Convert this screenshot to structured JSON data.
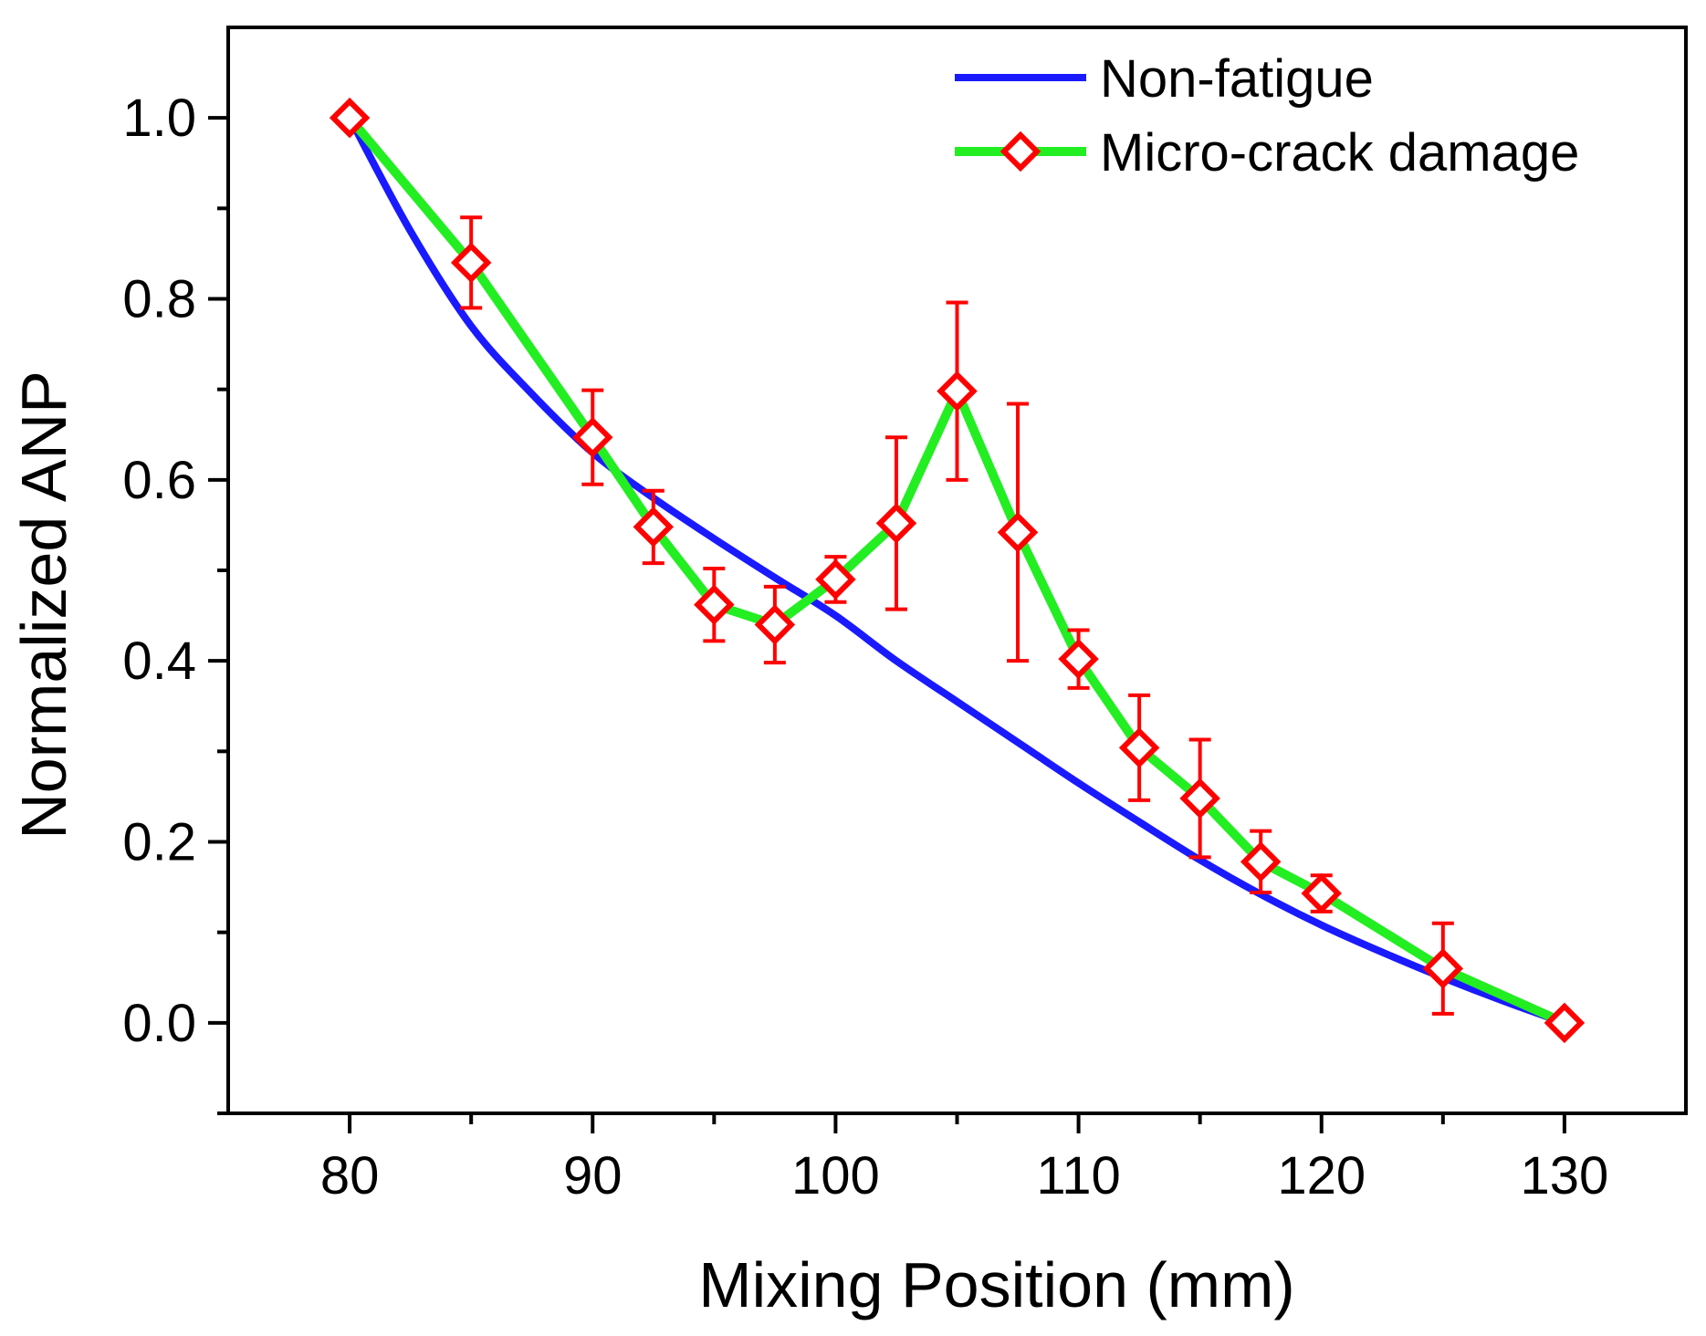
{
  "chart_data": {
    "type": "line",
    "title": "",
    "xlabel": "Mixing Position (mm)",
    "ylabel": "Normalized ANP",
    "xlim": [
      75,
      135
    ],
    "ylim": [
      -0.1,
      1.1
    ],
    "xticks": [
      80,
      90,
      100,
      110,
      120,
      130
    ],
    "xtick_labels": [
      "80",
      "90",
      "100",
      "110",
      "120",
      "130"
    ],
    "yticks": [
      0.0,
      0.2,
      0.4,
      0.6,
      0.8,
      1.0
    ],
    "ytick_labels": [
      "0.0",
      "0.2",
      "0.4",
      "0.6",
      "0.8",
      "1.0"
    ],
    "grid": false,
    "legend_position": "top-right",
    "colors": {
      "non_fatigue": "#1a1aff",
      "damage_line": "#22ee22",
      "damage_marker": "#ff0000",
      "axis": "#000000"
    },
    "series": [
      {
        "name": "Non-fatigue",
        "style": "solid line",
        "x": [
          80,
          82.5,
          85,
          87.5,
          90,
          92.5,
          95,
          97.5,
          100,
          102.5,
          105,
          107.5,
          110,
          112.5,
          115,
          117.5,
          120,
          122.5,
          125,
          127.5,
          130
        ],
        "y": [
          1.0,
          0.875,
          0.77,
          0.695,
          0.63,
          0.58,
          0.535,
          0.492,
          0.45,
          0.4,
          0.355,
          0.31,
          0.265,
          0.222,
          0.18,
          0.142,
          0.108,
          0.078,
          0.05,
          0.024,
          0.0
        ]
      },
      {
        "name": "Micro-crack damage",
        "style": "line with diamond markers and error bars",
        "x": [
          80,
          85,
          90,
          92.5,
          95,
          97.5,
          100,
          102.5,
          105,
          107.5,
          110,
          112.5,
          115,
          117.5,
          120,
          125,
          130
        ],
        "y": [
          1.0,
          0.84,
          0.647,
          0.548,
          0.462,
          0.44,
          0.49,
          0.552,
          0.698,
          0.542,
          0.402,
          0.304,
          0.248,
          0.178,
          0.143,
          0.06,
          0.0
        ],
        "error": [
          0,
          0.05,
          0.052,
          0.04,
          0.04,
          0.042,
          0.025,
          0.095,
          0.098,
          0.142,
          0.032,
          0.058,
          0.065,
          0.034,
          0.02,
          0.05,
          0
        ]
      }
    ]
  }
}
